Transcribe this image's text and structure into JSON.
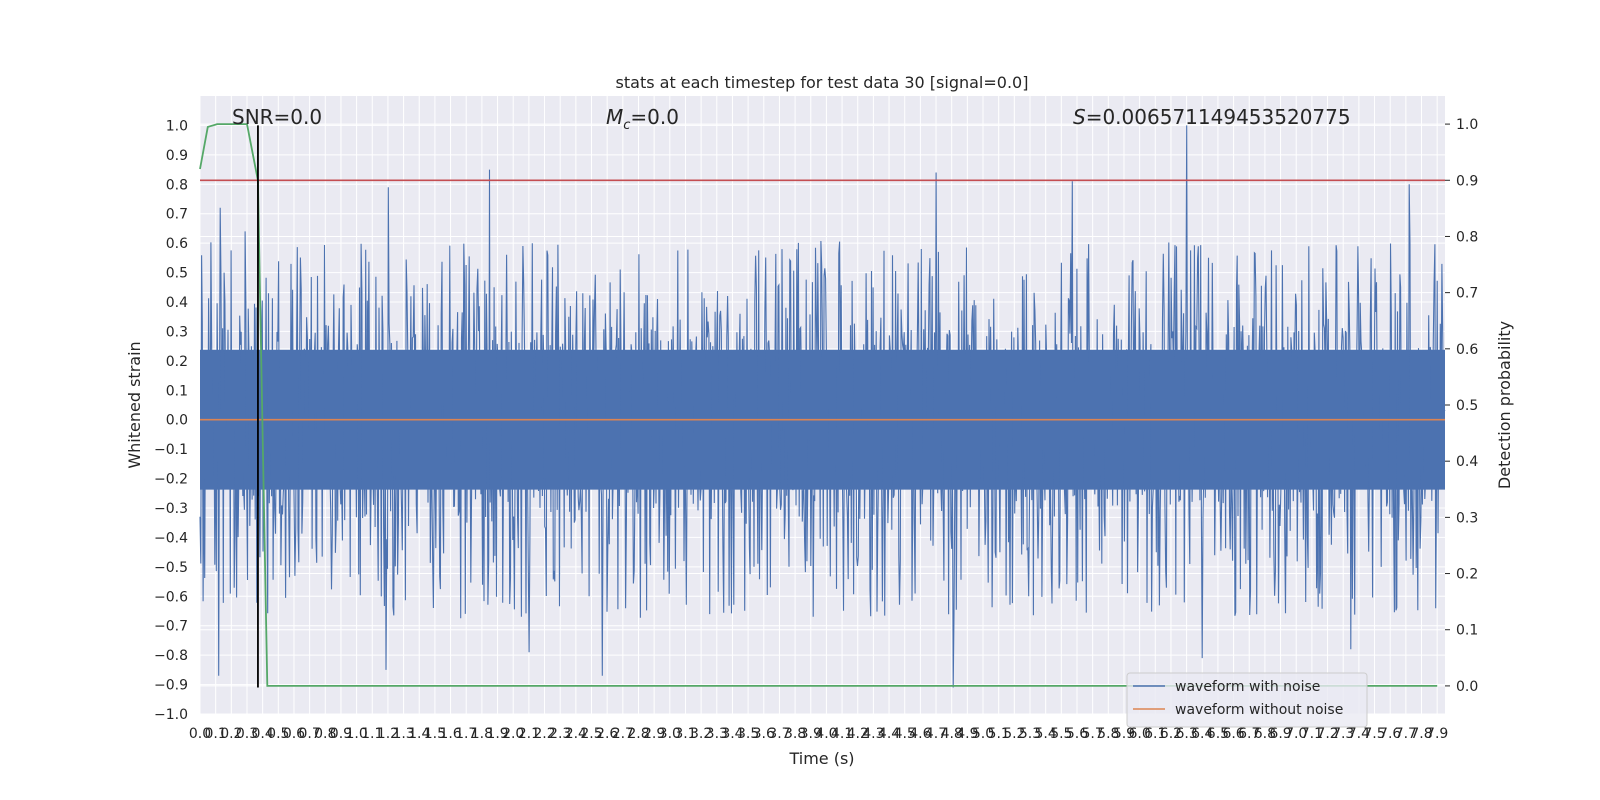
{
  "chart_data": {
    "type": "line",
    "title": "stats at each timestep for test data 30 [signal=0.0]",
    "xlabel": "Time (s)",
    "ylabel": "Whitened strain",
    "ylabel_right": "Detection probability",
    "xlim": [
      0.0,
      7.95
    ],
    "ylim": [
      -1.0,
      1.1
    ],
    "ylim_right": [
      -0.05,
      1.05
    ],
    "x_ticks": [
      0.0,
      0.1,
      0.2,
      0.3,
      0.4,
      0.5,
      0.6,
      0.7,
      0.8,
      0.9,
      1.0,
      1.1,
      1.2,
      1.3,
      1.4,
      1.5,
      1.6,
      1.7,
      1.8,
      1.9,
      2.0,
      2.1,
      2.2,
      2.3,
      2.4,
      2.5,
      2.6,
      2.7,
      2.8,
      2.9,
      3.0,
      3.1,
      3.2,
      3.3,
      3.4,
      3.5,
      3.6,
      3.7,
      3.8,
      3.9,
      4.0,
      4.1,
      4.2,
      4.3,
      4.4,
      4.5,
      4.6,
      4.7,
      4.8,
      4.9,
      5.0,
      5.1,
      5.2,
      5.3,
      5.4,
      5.5,
      5.6,
      5.7,
      5.8,
      5.9,
      6.0,
      6.1,
      6.2,
      6.3,
      6.4,
      6.5,
      6.6,
      6.7,
      6.8,
      6.9,
      7.0,
      7.1,
      7.2,
      7.3,
      7.4,
      7.5,
      7.6,
      7.7,
      7.8,
      7.9
    ],
    "y_ticks": [
      -1.0,
      -0.9,
      -0.8,
      -0.7,
      -0.6,
      -0.5,
      -0.4,
      -0.3,
      -0.2,
      -0.1,
      0.0,
      0.1,
      0.2,
      0.3,
      0.4,
      0.5,
      0.6,
      0.7,
      0.8,
      0.9,
      1.0
    ],
    "y_ticks_right": [
      0.0,
      0.1,
      0.2,
      0.3,
      0.4,
      0.5,
      0.6,
      0.7,
      0.8,
      0.9,
      1.0
    ],
    "annotations": {
      "snr": "SNR=0.0",
      "mc_symbol": "M",
      "mc_sub": "c",
      "mc_value": "=0.0",
      "s_symbol": "S",
      "s_value": "=0.006571149453520775"
    },
    "series": [
      {
        "name": "waveform with noise",
        "color": "#4c72b0",
        "kind": "noise",
        "core_amplitude": 0.33,
        "typical_peak_pos": 0.45,
        "typical_peak_neg": -0.5,
        "max_value": 1.0,
        "min_value": -0.91,
        "notable_peaks": [
          {
            "x": 0.13,
            "y": 0.72
          },
          {
            "x": 0.29,
            "y": 0.64
          },
          {
            "x": 0.12,
            "y": -0.87
          },
          {
            "x": 1.2,
            "y": 0.79
          },
          {
            "x": 1.85,
            "y": 0.85
          },
          {
            "x": 2.57,
            "y": -0.87
          },
          {
            "x": 4.7,
            "y": 0.84
          },
          {
            "x": 4.81,
            "y": -0.91
          },
          {
            "x": 5.57,
            "y": 0.81
          },
          {
            "x": 6.3,
            "y": 1.0
          },
          {
            "x": 6.4,
            "y": -0.81
          },
          {
            "x": 7.72,
            "y": 0.8
          },
          {
            "x": 1.19,
            "y": -0.85
          },
          {
            "x": 2.1,
            "y": -0.79
          },
          {
            "x": 7.35,
            "y": -0.78
          }
        ]
      },
      {
        "name": "waveform without noise",
        "color": "#dd8452",
        "x": [
          0.0,
          7.95
        ],
        "y": [
          0.0,
          0.0
        ]
      },
      {
        "name": "detection probability",
        "axis": "right",
        "color": "#55a868",
        "x": [
          0.0,
          0.05,
          0.11,
          0.3,
          0.37,
          0.43,
          7.9
        ],
        "y": [
          0.92,
          0.995,
          1.0,
          1.0,
          0.9,
          0.0,
          0.0
        ]
      }
    ],
    "reference_lines": {
      "threshold_right": {
        "value": 0.9,
        "color": "#c44e52"
      },
      "marker_x": {
        "value": 0.37,
        "ymin": -0.91,
        "ymax": 1.0,
        "color": "#000000"
      }
    },
    "legend": {
      "position": "lower-right",
      "entries": [
        {
          "label": "waveform with noise",
          "color": "#4c72b0"
        },
        {
          "label": "waveform without noise",
          "color": "#dd8452"
        }
      ]
    },
    "style": {
      "axes_background": "#eaeaf2",
      "grid_color": "#ffffff"
    }
  }
}
